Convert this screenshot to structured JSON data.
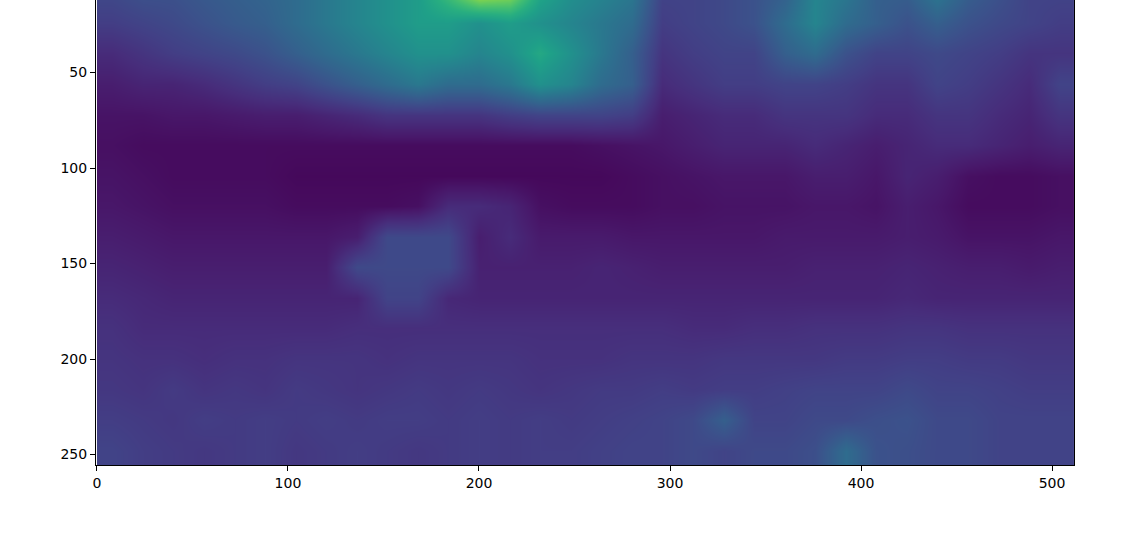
{
  "chart_data": {
    "type": "heatmap",
    "x": [
      8,
      24,
      40,
      56,
      72,
      88,
      104,
      120,
      136,
      152,
      168,
      184,
      200,
      216,
      232,
      248,
      264,
      280,
      296,
      312,
      328,
      344,
      360,
      376,
      392,
      408,
      424,
      440,
      456,
      472,
      488,
      504
    ],
    "y": [
      8,
      24,
      40,
      56,
      72,
      88,
      104,
      120,
      136,
      152,
      168,
      184,
      200,
      216,
      232,
      248
    ],
    "cells": [
      [
        0.22,
        0.25,
        0.25,
        0.28,
        0.3,
        0.32,
        0.35,
        0.4,
        0.45,
        0.5,
        0.55,
        0.7,
        0.9,
        0.85,
        0.6,
        0.5,
        0.45,
        0.4,
        0.2,
        0.2,
        0.22,
        0.25,
        0.3,
        0.45,
        0.4,
        0.3,
        0.3,
        0.4,
        0.3,
        0.25,
        0.2,
        0.2
      ],
      [
        0.18,
        0.2,
        0.22,
        0.25,
        0.28,
        0.3,
        0.35,
        0.4,
        0.45,
        0.5,
        0.55,
        0.55,
        0.5,
        0.55,
        0.5,
        0.45,
        0.4,
        0.35,
        0.18,
        0.2,
        0.22,
        0.25,
        0.35,
        0.45,
        0.35,
        0.3,
        0.25,
        0.3,
        0.25,
        0.22,
        0.2,
        0.18
      ],
      [
        0.12,
        0.15,
        0.18,
        0.2,
        0.22,
        0.25,
        0.3,
        0.35,
        0.4,
        0.45,
        0.5,
        0.5,
        0.45,
        0.5,
        0.6,
        0.5,
        0.4,
        0.3,
        0.15,
        0.18,
        0.2,
        0.2,
        0.3,
        0.35,
        0.25,
        0.2,
        0.2,
        0.22,
        0.2,
        0.18,
        0.15,
        0.15
      ],
      [
        0.08,
        0.1,
        0.1,
        0.12,
        0.15,
        0.18,
        0.2,
        0.25,
        0.3,
        0.35,
        0.4,
        0.35,
        0.35,
        0.4,
        0.5,
        0.45,
        0.35,
        0.3,
        0.12,
        0.15,
        0.18,
        0.18,
        0.2,
        0.2,
        0.18,
        0.15,
        0.15,
        0.2,
        0.18,
        0.15,
        0.12,
        0.2
      ],
      [
        0.05,
        0.05,
        0.06,
        0.06,
        0.07,
        0.08,
        0.08,
        0.1,
        0.12,
        0.15,
        0.15,
        0.15,
        0.15,
        0.18,
        0.2,
        0.2,
        0.2,
        0.18,
        0.08,
        0.1,
        0.12,
        0.12,
        0.15,
        0.15,
        0.15,
        0.12,
        0.12,
        0.15,
        0.15,
        0.12,
        0.1,
        0.15
      ],
      [
        0.04,
        0.03,
        0.03,
        0.03,
        0.03,
        0.03,
        0.03,
        0.03,
        0.03,
        0.03,
        0.03,
        0.03,
        0.03,
        0.03,
        0.03,
        0.03,
        0.04,
        0.05,
        0.06,
        0.08,
        0.1,
        0.1,
        0.1,
        0.12,
        0.1,
        0.08,
        0.1,
        0.12,
        0.12,
        0.1,
        0.08,
        0.1
      ],
      [
        0.05,
        0.04,
        0.03,
        0.03,
        0.03,
        0.03,
        0.02,
        0.02,
        0.02,
        0.02,
        0.02,
        0.02,
        0.02,
        0.02,
        0.02,
        0.02,
        0.02,
        0.03,
        0.04,
        0.05,
        0.06,
        0.06,
        0.06,
        0.08,
        0.08,
        0.06,
        0.1,
        0.08,
        0.04,
        0.03,
        0.03,
        0.04
      ],
      [
        0.06,
        0.05,
        0.04,
        0.04,
        0.04,
        0.04,
        0.03,
        0.03,
        0.03,
        0.03,
        0.04,
        0.12,
        0.12,
        0.1,
        0.04,
        0.03,
        0.03,
        0.03,
        0.04,
        0.04,
        0.05,
        0.05,
        0.05,
        0.06,
        0.06,
        0.05,
        0.08,
        0.06,
        0.03,
        0.03,
        0.03,
        0.04
      ],
      [
        0.08,
        0.07,
        0.06,
        0.06,
        0.06,
        0.06,
        0.06,
        0.06,
        0.08,
        0.22,
        0.22,
        0.22,
        0.08,
        0.12,
        0.07,
        0.07,
        0.07,
        0.06,
        0.06,
        0.06,
        0.06,
        0.06,
        0.07,
        0.07,
        0.07,
        0.07,
        0.08,
        0.07,
        0.05,
        0.05,
        0.05,
        0.06
      ],
      [
        0.1,
        0.09,
        0.08,
        0.08,
        0.08,
        0.08,
        0.08,
        0.08,
        0.22,
        0.22,
        0.22,
        0.22,
        0.09,
        0.09,
        0.09,
        0.09,
        0.1,
        0.09,
        0.08,
        0.08,
        0.08,
        0.08,
        0.08,
        0.09,
        0.09,
        0.09,
        0.1,
        0.09,
        0.08,
        0.08,
        0.07,
        0.08
      ],
      [
        0.12,
        0.11,
        0.1,
        0.1,
        0.1,
        0.1,
        0.1,
        0.1,
        0.1,
        0.2,
        0.2,
        0.11,
        0.1,
        0.1,
        0.1,
        0.1,
        0.1,
        0.1,
        0.1,
        0.1,
        0.1,
        0.1,
        0.1,
        0.1,
        0.1,
        0.1,
        0.11,
        0.1,
        0.1,
        0.1,
        0.1,
        0.1
      ],
      [
        0.14,
        0.12,
        0.12,
        0.12,
        0.12,
        0.12,
        0.12,
        0.12,
        0.13,
        0.13,
        0.13,
        0.13,
        0.13,
        0.13,
        0.13,
        0.13,
        0.13,
        0.13,
        0.13,
        0.12,
        0.12,
        0.13,
        0.13,
        0.14,
        0.14,
        0.14,
        0.15,
        0.15,
        0.14,
        0.14,
        0.14,
        0.14
      ],
      [
        0.15,
        0.14,
        0.14,
        0.13,
        0.14,
        0.14,
        0.15,
        0.15,
        0.15,
        0.14,
        0.15,
        0.15,
        0.15,
        0.15,
        0.14,
        0.14,
        0.14,
        0.15,
        0.15,
        0.15,
        0.16,
        0.16,
        0.16,
        0.16,
        0.17,
        0.17,
        0.18,
        0.18,
        0.17,
        0.17,
        0.16,
        0.16
      ],
      [
        0.16,
        0.15,
        0.17,
        0.15,
        0.16,
        0.15,
        0.17,
        0.16,
        0.15,
        0.16,
        0.17,
        0.16,
        0.17,
        0.16,
        0.15,
        0.16,
        0.17,
        0.17,
        0.18,
        0.17,
        0.18,
        0.18,
        0.19,
        0.2,
        0.2,
        0.2,
        0.22,
        0.2,
        0.2,
        0.19,
        0.18,
        0.18
      ],
      [
        0.18,
        0.17,
        0.16,
        0.18,
        0.17,
        0.18,
        0.17,
        0.18,
        0.17,
        0.18,
        0.18,
        0.17,
        0.18,
        0.17,
        0.18,
        0.17,
        0.18,
        0.19,
        0.2,
        0.22,
        0.3,
        0.2,
        0.2,
        0.22,
        0.22,
        0.24,
        0.25,
        0.22,
        0.22,
        0.2,
        0.2,
        0.2
      ],
      [
        0.2,
        0.18,
        0.17,
        0.16,
        0.17,
        0.18,
        0.16,
        0.17,
        0.18,
        0.17,
        0.16,
        0.17,
        0.18,
        0.17,
        0.18,
        0.18,
        0.19,
        0.2,
        0.2,
        0.22,
        0.2,
        0.22,
        0.22,
        0.24,
        0.35,
        0.25,
        0.24,
        0.22,
        0.22,
        0.2,
        0.2,
        0.2
      ]
    ],
    "zlim": [
      0,
      1
    ],
    "color": "viridis",
    "xlim": [
      -0.5,
      511.5
    ],
    "ylim": [
      255.5,
      12
    ],
    "xticks": [
      0,
      100,
      200,
      300,
      400,
      500
    ],
    "yticks": [
      50,
      100,
      150,
      200,
      250
    ]
  }
}
